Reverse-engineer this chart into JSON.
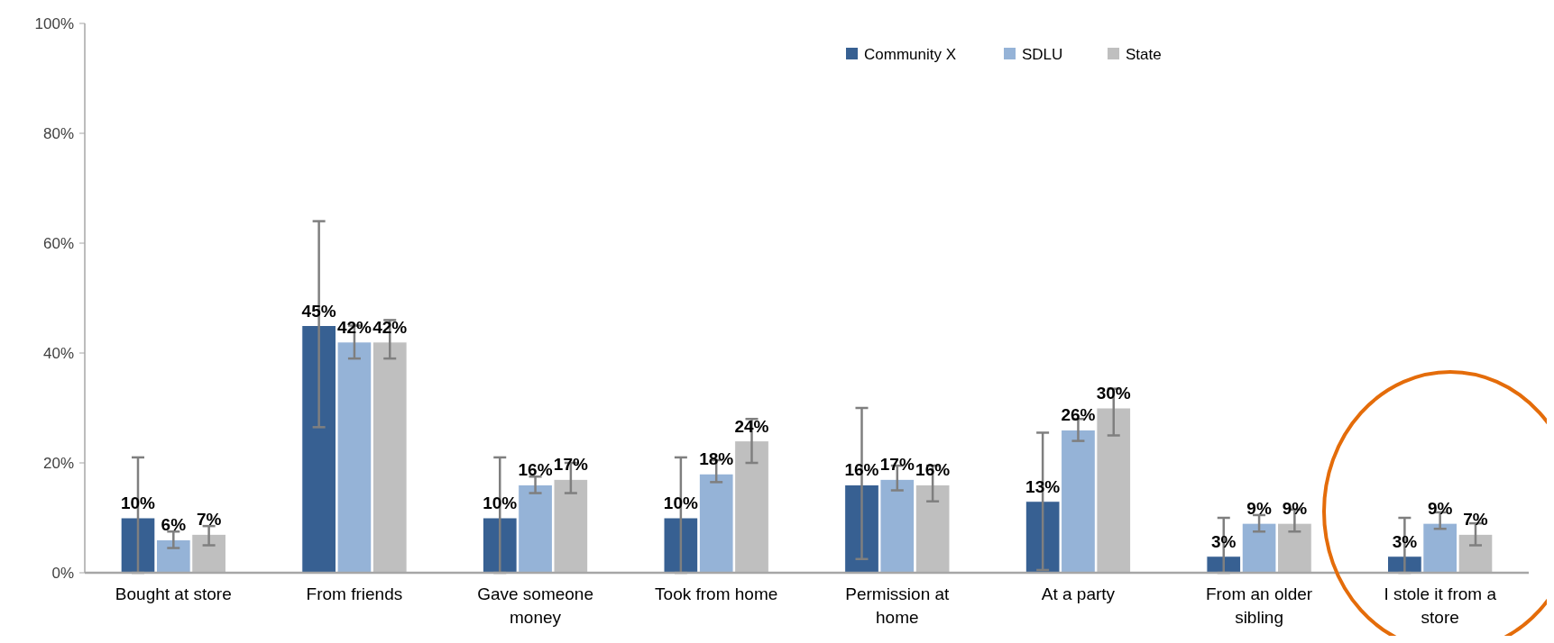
{
  "chart_data": {
    "type": "bar",
    "categories": [
      "Bought at store",
      "From friends",
      "Gave someone money",
      "Took from home",
      "Permission at home",
      "At a party",
      "From an older sibling",
      "I stole it from a store"
    ],
    "series": [
      {
        "name": "Community X",
        "color": "#376092",
        "values": [
          10,
          45,
          10,
          10,
          16,
          13,
          3,
          3
        ],
        "value_labels": [
          "10%",
          "45%",
          "10%",
          "10%",
          "16%",
          "13%",
          "3%",
          "3%"
        ],
        "errors": [
          [
            0,
            21
          ],
          [
            26.5,
            64
          ],
          [
            0,
            21
          ],
          [
            0,
            21
          ],
          [
            2.5,
            30
          ],
          [
            0.5,
            25.5
          ],
          [
            0,
            10
          ],
          [
            0,
            10
          ]
        ]
      },
      {
        "name": "SDLU",
        "color": "#95b3d7",
        "values": [
          6,
          42,
          16,
          18,
          17,
          26,
          9,
          9
        ],
        "value_labels": [
          "6%",
          "42%",
          "16%",
          "18%",
          "17%",
          "26%",
          "9%",
          "9%"
        ],
        "errors": [
          [
            4.5,
            7.5
          ],
          [
            39,
            45
          ],
          [
            14.5,
            17.5
          ],
          [
            16.5,
            20.5
          ],
          [
            15,
            19.5
          ],
          [
            24,
            28
          ],
          [
            7.5,
            10.5
          ],
          [
            8,
            11
          ]
        ]
      },
      {
        "name": "State",
        "color": "#bfbfbf",
        "values": [
          7,
          42,
          17,
          24,
          16,
          30,
          9,
          7
        ],
        "value_labels": [
          "7%",
          "42%",
          "17%",
          "24%",
          "16%",
          "30%",
          "9%",
          "7%"
        ],
        "errors": [
          [
            5,
            8.5
          ],
          [
            39,
            46
          ],
          [
            14.5,
            20
          ],
          [
            20,
            28
          ],
          [
            13,
            19.5
          ],
          [
            25,
            33.5
          ],
          [
            7.5,
            11.5
          ],
          [
            5,
            9
          ]
        ]
      }
    ],
    "ylim": [
      0,
      100
    ],
    "yticks": [
      {
        "value": 0,
        "label": "0%"
      },
      {
        "value": 20,
        "label": "20%"
      },
      {
        "value": 40,
        "label": "40%"
      },
      {
        "value": 60,
        "label": "60%"
      },
      {
        "value": 80,
        "label": "80%"
      },
      {
        "value": 100,
        "label": "100%"
      }
    ],
    "legend": "top right"
  }
}
